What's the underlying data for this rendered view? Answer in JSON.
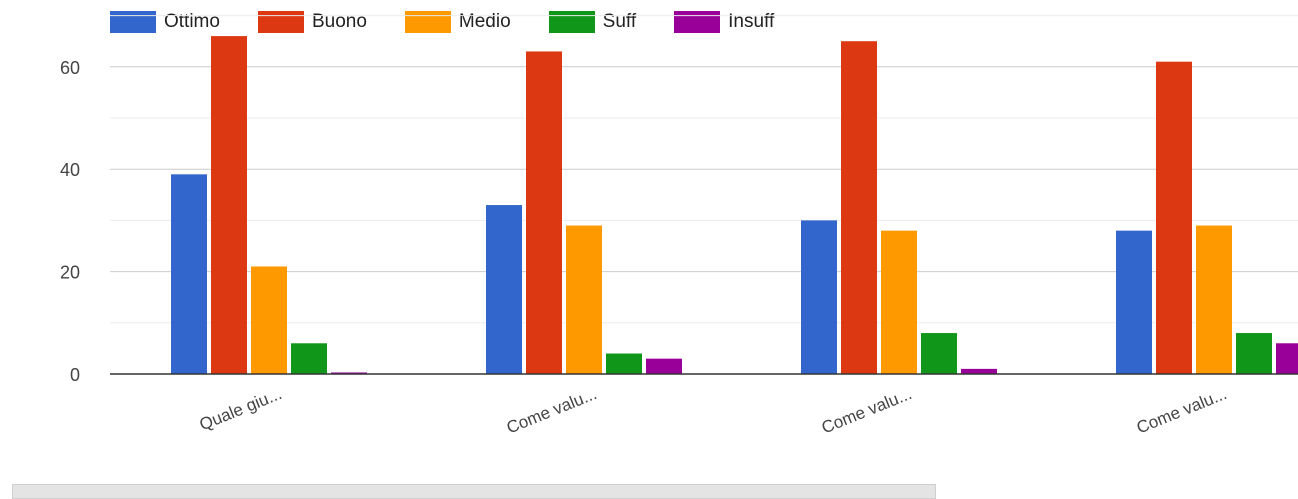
{
  "chart_data": {
    "type": "bar",
    "title": "",
    "xlabel": "",
    "ylabel": "",
    "categories": [
      "Quale giu...",
      "Come valu...",
      "Come valu...",
      "Come valu..."
    ],
    "series": [
      {
        "name": "Ottimo",
        "color": "#3366cc",
        "values": [
          39,
          33,
          30,
          28
        ]
      },
      {
        "name": "Buono",
        "color": "#dc3912",
        "values": [
          66,
          63,
          65,
          61
        ]
      },
      {
        "name": "Medio",
        "color": "#ff9900",
        "values": [
          21,
          29,
          28,
          29
        ]
      },
      {
        "name": "Suff",
        "color": "#109618",
        "values": [
          6,
          4,
          8,
          8
        ]
      },
      {
        "name": "Insuff",
        "color": "#990099",
        "values": [
          0.3,
          3,
          1,
          6
        ]
      }
    ],
    "yticks": [
      "0",
      "20",
      "40",
      "60"
    ],
    "ytick_values": [
      0,
      20,
      40,
      60
    ],
    "ylim": [
      0,
      70
    ],
    "grid": true,
    "legend_position": "top"
  }
}
